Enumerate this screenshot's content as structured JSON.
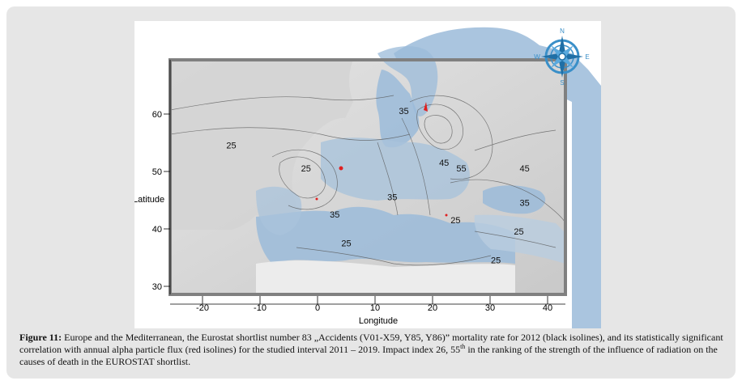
{
  "map": {
    "x_axis": {
      "label": "Longitude",
      "ticks": [
        "-20",
        "-10",
        "0",
        "10",
        "20",
        "30",
        "40"
      ],
      "tick_values": [
        -20,
        -10,
        0,
        10,
        20,
        30,
        40
      ]
    },
    "y_axis": {
      "label": "Latitude",
      "ticks": [
        "30",
        "40",
        "50",
        "60"
      ],
      "tick_values": [
        30,
        40,
        50,
        60
      ]
    },
    "isoline_labels": [
      {
        "text": "25",
        "lon": -15,
        "lat": 54
      },
      {
        "text": "25",
        "lon": -2,
        "lat": 50
      },
      {
        "text": "35",
        "lon": 15,
        "lat": 60
      },
      {
        "text": "45",
        "lon": 22,
        "lat": 51
      },
      {
        "text": "55",
        "lon": 25,
        "lat": 50
      },
      {
        "text": "45",
        "lon": 36,
        "lat": 50
      },
      {
        "text": "35",
        "lon": 13,
        "lat": 45
      },
      {
        "text": "35",
        "lon": 3,
        "lat": 42
      },
      {
        "text": "25",
        "lon": 24,
        "lat": 41
      },
      {
        "text": "35",
        "lon": 36,
        "lat": 44
      },
      {
        "text": "25",
        "lon": 35,
        "lat": 39
      },
      {
        "text": "25",
        "lon": 5,
        "lat": 37
      },
      {
        "text": "25",
        "lon": 31,
        "lat": 34
      }
    ],
    "colors": {
      "sea": "#9bbbd9",
      "land": "#d9d9d9",
      "frame": "#808080",
      "red_isoline": "#e02020"
    },
    "compass_letters": {
      "n": "N",
      "e": "E",
      "w": "W",
      "s": "S"
    }
  },
  "caption": {
    "label": "Figure 11:",
    "text": " Europe and the Mediterranean, the Eurostat shortlist number 83 „Accidents (V01-X59, Y85, Y86)” mortality rate for 2012 (black isolines), and its statistically significant correlation with annual alpha particle flux (red isolines) for the studied interval 2011 – 2019. Impact index 26, 55",
    "superscript": "th",
    "text_end": " in the ranking of the strength of the influence of radiation on the causes of death in the EUROSTAT shortlist."
  }
}
